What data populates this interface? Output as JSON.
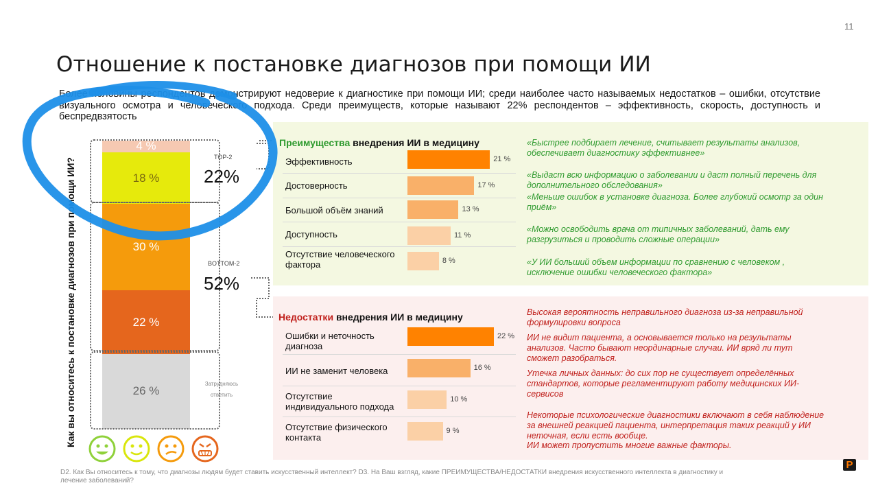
{
  "page_number": "11",
  "title": "Отношение к постановке диагнозов при помощи ИИ",
  "subtitle": "Более половины респондентов демонстрируют недоверие к диагностике при помощи ИИ; среди наиболее часто называемых недостатков – ошибки, отсутствие визуального осмотра и человеческого подхода. Среди преимуществ, которые называют 22% респондентов – эффективность, скорость, доступность и беспредвзятость",
  "chart_data": [
    {
      "type": "bar",
      "subtype": "stacked",
      "title": "",
      "ylabel": "Как вы относитесь к постановке диагнозов при помощи ИИ?",
      "categories": [
        "Полностью доверяю",
        "Скорее доверяю",
        "Скорее не доверяю",
        "Совсем не доверяю",
        "Затрудняюсь ответить"
      ],
      "values": [
        4,
        18,
        30,
        22,
        26
      ],
      "labels": [
        "4 %",
        "18 %",
        "30 %",
        "22 %",
        "26 %"
      ],
      "colors": [
        "#f6c9b2",
        "#e6ea0c",
        "#f59b0c",
        "#e5661d",
        "#d9d9d9"
      ],
      "groups": [
        {
          "name": "TOP-2",
          "value": "22%"
        },
        {
          "name": "BOTTOM-2",
          "value": "52%"
        },
        {
          "name": "Затрудняюсь ответить",
          "value": ""
        }
      ],
      "unit": "%"
    },
    {
      "type": "bar",
      "orientation": "horizontal",
      "title_highlight": "Преимущества",
      "title_rest": " внедрения ИИ в медицину",
      "categories": [
        "Эффективность",
        "Достоверность",
        "Большой объём знаний",
        "Доступность",
        "Отсутствие человеческого фактора"
      ],
      "values": [
        21,
        17,
        13,
        11,
        8
      ],
      "labels": [
        "21 %",
        "17 %",
        "13 %",
        "11 %",
        "8 %"
      ],
      "xlim": [
        0,
        22
      ],
      "unit": "%"
    },
    {
      "type": "bar",
      "orientation": "horizontal",
      "title_highlight": "Недостатки",
      "title_rest": " внедрения ИИ в медицину",
      "categories": [
        "Ошибки и неточность диагноза",
        "ИИ не заменит человека",
        "Отсутствие индивидуального подхода",
        "Отсутствие физического контакта"
      ],
      "values": [
        22,
        16,
        10,
        9
      ],
      "labels": [
        "22 %",
        "16 %",
        "10 %",
        "9 %"
      ],
      "xlim": [
        0,
        22
      ],
      "unit": "%"
    }
  ],
  "stack": {
    "top_label": "TOP-2",
    "top_value": "22%",
    "bottom_label": "BOTTOM-2",
    "bottom_value": "52%",
    "unsure_label_1": "Затрудняюсь",
    "unsure_label_2": "ответить"
  },
  "advantages": {
    "head_highlight": "Преимущества",
    "head_rest": " внедрения ИИ в медицину",
    "rows": [
      {
        "label_1": "Эффективность",
        "label_2": ""
      },
      {
        "label_1": "Достоверность",
        "label_2": ""
      },
      {
        "label_1": "Большой объём знаний",
        "label_2": ""
      },
      {
        "label_1": "Доступность",
        "label_2": ""
      },
      {
        "label_1": "Отсутствие человеческого",
        "label_2": "фактора"
      }
    ],
    "quotes": [
      "«Быстрее подбирает лечение, считывает результаты анализов, обеспечивает диагностику эффективнее»",
      "«Выдаст всю информацию о заболевании и даст полный перечень для дополнительного обследования»",
      "«Меньше ошибок в установке диагноза. Более глубокий осмотр за один приём»",
      "«Можно освободить врача от типичных заболеваний, дать ему разгрузиться и проводить сложные операции»",
      "«У ИИ больший объем информации по сравнению с человеком , исключение ошибки человеческого фактора»"
    ]
  },
  "disadvantages": {
    "head_highlight": "Недостатки",
    "head_rest": " внедрения ИИ в медицину",
    "rows": [
      {
        "label_1": "Ошибки и неточность",
        "label_2": "диагноза"
      },
      {
        "label_1": "ИИ не заменит человека",
        "label_2": ""
      },
      {
        "label_1": "Отсутствие",
        "label_2": "индивидуального подхода"
      },
      {
        "label_1": "Отсутствие физического",
        "label_2": "контакта"
      }
    ],
    "quotes": [
      "Высокая вероятность неправильного диагноза из-за неправильной формулировки вопроса",
      "ИИ не видит пациента, а основывается только на результаты анализов. Часто бывают неординарные случаи. ИИ вряд ли тут сможет разобраться.",
      "Утечка личных данных: до сих пор не существует определённых стандартов, которые регламентируют работу медицинских ИИ-сервисов",
      "Некоторые психологические диагностики включают в себя наблюдение за внешней реакцией пациента, интерпретация таких реакций у ИИ неточная, если есть вообще.",
      "ИИ может пропустить многие важные факторы."
    ]
  },
  "footnote": "D2. Как Вы относитесь к тому, что диагнозы людям будет ставить искусственный интеллект? D3. На Ваш взгляд, какие ПРЕИМУЩЕСТВА/НЕДОСТАТКИ внедрения искусственного интеллекта в диагностику и лечение заболеваний?",
  "logo_text": "P",
  "colors": {
    "green_text": "#2e9a2e",
    "red_text": "#c0201c",
    "green_panel": "#f4f8e1",
    "red_panel": "#fcefee",
    "blue_scribble": "#1e8fe8"
  }
}
